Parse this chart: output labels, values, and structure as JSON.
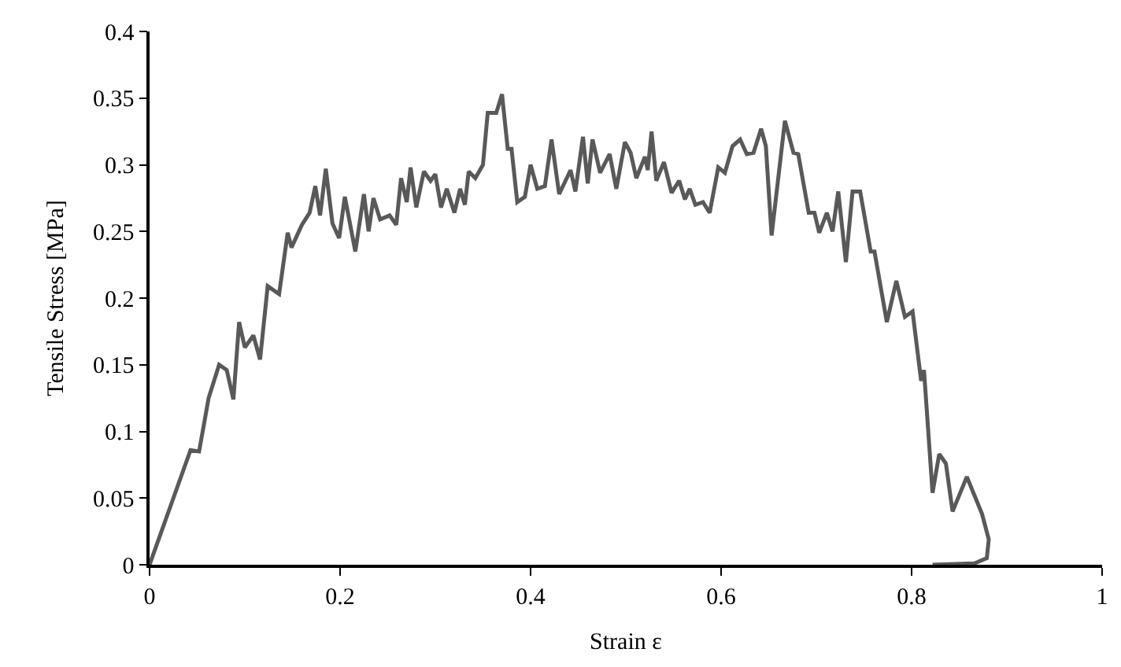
{
  "chart_data": {
    "type": "line",
    "xlabel": "Strain ε",
    "ylabel": "Tensile Stress [MPa]",
    "xlim": [
      0,
      1
    ],
    "xticks": [
      0,
      0.2,
      0.4,
      0.6,
      0.8,
      1
    ],
    "ylim": [
      0,
      0.4
    ],
    "yticks": [
      0,
      0.05,
      0.1,
      0.15,
      0.2,
      0.25,
      0.3,
      0.35,
      0.4
    ],
    "grid": false,
    "marker": "none",
    "line_style": "solid",
    "series": [
      {
        "color": "#595959",
        "x": [
          0,
          0.043,
          0.052,
          0.062,
          0.073,
          0.081,
          0.088,
          0.094,
          0.1,
          0.109,
          0.116,
          0.124,
          0.136,
          0.145,
          0.149,
          0.16,
          0.168,
          0.174,
          0.179,
          0.185,
          0.192,
          0.199,
          0.205,
          0.216,
          0.225,
          0.23,
          0.235,
          0.242,
          0.252,
          0.259,
          0.264,
          0.27,
          0.274,
          0.28,
          0.288,
          0.295,
          0.3,
          0.306,
          0.312,
          0.32,
          0.326,
          0.331,
          0.335,
          0.342,
          0.35,
          0.355,
          0.364,
          0.37,
          0.376,
          0.38,
          0.386,
          0.394,
          0.4,
          0.407,
          0.415,
          0.422,
          0.43,
          0.442,
          0.447,
          0.455,
          0.46,
          0.465,
          0.473,
          0.483,
          0.49,
          0.499,
          0.505,
          0.511,
          0.52,
          0.523,
          0.527,
          0.532,
          0.54,
          0.548,
          0.556,
          0.562,
          0.567,
          0.573,
          0.581,
          0.588,
          0.597,
          0.604,
          0.612,
          0.62,
          0.627,
          0.634,
          0.642,
          0.647,
          0.653,
          0.667,
          0.676,
          0.681,
          0.692,
          0.698,
          0.703,
          0.711,
          0.717,
          0.723,
          0.731,
          0.738,
          0.746,
          0.757,
          0.761,
          0.774,
          0.784,
          0.793,
          0.801,
          0.81,
          0.813,
          0.822,
          0.829,
          0.836,
          0.843,
          0.858,
          0.874,
          0.881,
          0.879,
          0.866,
          0.822
        ],
        "values": [
          0,
          0.086,
          0.085,
          0.125,
          0.15,
          0.146,
          0.124,
          0.182,
          0.163,
          0.172,
          0.154,
          0.209,
          0.203,
          0.249,
          0.238,
          0.255,
          0.264,
          0.284,
          0.262,
          0.297,
          0.256,
          0.245,
          0.276,
          0.235,
          0.278,
          0.25,
          0.275,
          0.259,
          0.262,
          0.255,
          0.29,
          0.272,
          0.298,
          0.268,
          0.295,
          0.288,
          0.293,
          0.268,
          0.282,
          0.264,
          0.282,
          0.27,
          0.295,
          0.29,
          0.3,
          0.339,
          0.339,
          0.353,
          0.312,
          0.312,
          0.272,
          0.276,
          0.3,
          0.282,
          0.284,
          0.319,
          0.278,
          0.296,
          0.28,
          0.321,
          0.286,
          0.319,
          0.294,
          0.308,
          0.282,
          0.317,
          0.309,
          0.29,
          0.306,
          0.296,
          0.325,
          0.288,
          0.302,
          0.279,
          0.288,
          0.274,
          0.282,
          0.27,
          0.272,
          0.264,
          0.298,
          0.294,
          0.314,
          0.319,
          0.308,
          0.309,
          0.327,
          0.314,
          0.247,
          0.333,
          0.309,
          0.308,
          0.264,
          0.264,
          0.249,
          0.264,
          0.25,
          0.28,
          0.227,
          0.28,
          0.28,
          0.235,
          0.235,
          0.182,
          0.213,
          0.186,
          0.19,
          0.138,
          0.146,
          0.054,
          0.083,
          0.076,
          0.04,
          0.066,
          0.038,
          0.019,
          0.005,
          0.001,
          0
        ]
      }
    ]
  }
}
